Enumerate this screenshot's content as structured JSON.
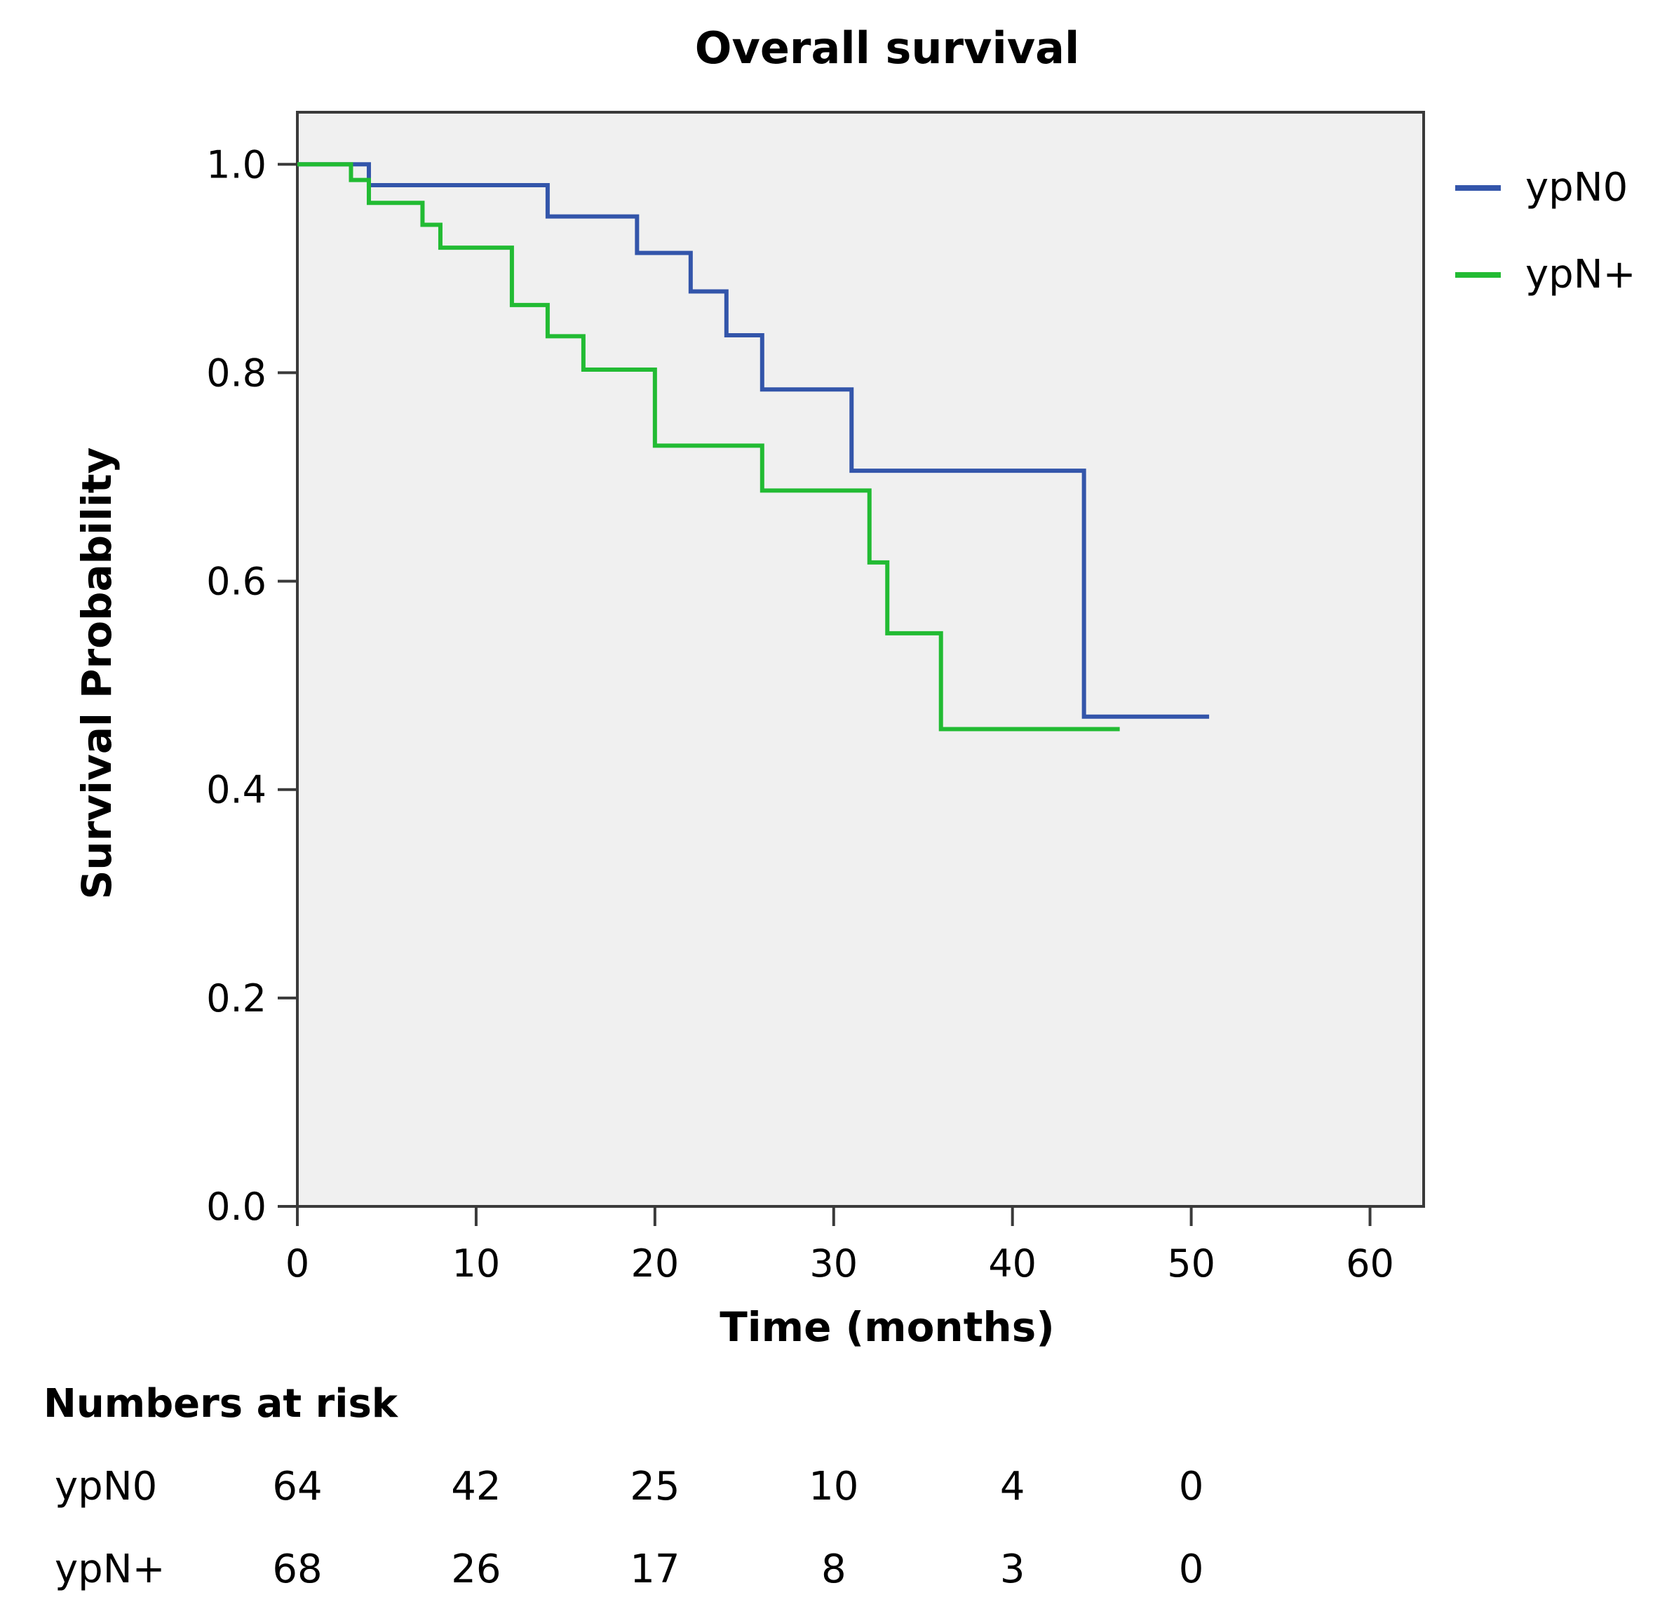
{
  "chart_data": {
    "type": "line",
    "title": "Overall survival",
    "xlabel": "Time (months)",
    "ylabel": "Survival Probability",
    "xlim": [
      0,
      63
    ],
    "ylim": [
      0,
      1.05
    ],
    "x_ticks": [
      "0",
      "10",
      "20",
      "30",
      "40",
      "50",
      "60"
    ],
    "y_ticks": [
      "0.0",
      "0.2",
      "0.4",
      "0.6",
      "0.8",
      "1.0"
    ],
    "grid": false,
    "legend_position": "top-right",
    "series": [
      {
        "name": "ypN0",
        "color": "#3355aa",
        "step_x": [
          0,
          4,
          14,
          19,
          22,
          24,
          26,
          31,
          44,
          51
        ],
        "step_y": [
          1.0,
          0.98,
          0.95,
          0.915,
          0.878,
          0.836,
          0.784,
          0.706,
          0.47,
          0.47
        ]
      },
      {
        "name": "ypN+",
        "color": "#22bb33",
        "step_x": [
          0,
          3,
          4,
          7,
          8,
          12,
          14,
          16,
          20,
          26,
          32,
          33,
          36,
          46
        ],
        "step_y": [
          1.0,
          0.985,
          0.963,
          0.942,
          0.92,
          0.865,
          0.835,
          0.803,
          0.73,
          0.687,
          0.618,
          0.55,
          0.458,
          0.458
        ]
      }
    ]
  },
  "risk_table": {
    "title": "Numbers at risk",
    "rows": [
      {
        "label": "ypN0",
        "values": [
          "64",
          "42",
          "25",
          "10",
          "4",
          "0"
        ]
      },
      {
        "label": "ypN+",
        "values": [
          "68",
          "26",
          "17",
          "8",
          "3",
          "0"
        ]
      }
    ]
  }
}
